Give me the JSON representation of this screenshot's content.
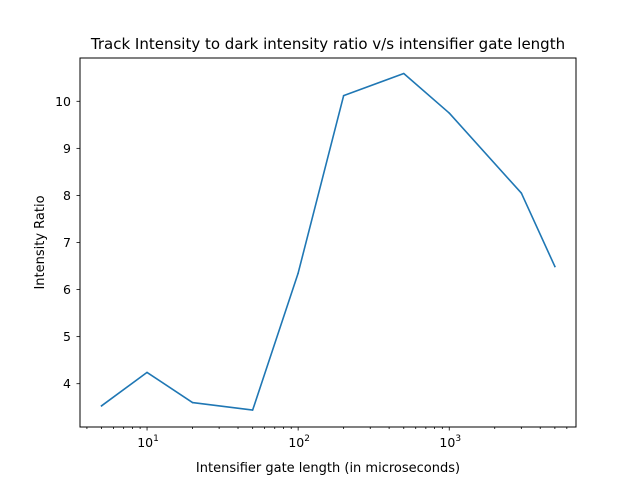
{
  "chart_data": {
    "type": "line",
    "title": "Track Intensity to dark intensity ratio v/s intensifier gate length",
    "xlabel": "Intensifier gate length (in microseconds)",
    "ylabel": "Intensity Ratio",
    "xscale": "log",
    "xlim": [
      3.6,
      6900
    ],
    "ylim": [
      3.08,
      10.92
    ],
    "grid": false,
    "x_tick_labels": [
      {
        "value": 10,
        "base": "10",
        "exponent": "1"
      },
      {
        "value": 100,
        "base": "10",
        "exponent": "2"
      },
      {
        "value": 1000,
        "base": "10",
        "exponent": "3"
      }
    ],
    "y_ticks": [
      4,
      5,
      6,
      7,
      8,
      9,
      10
    ],
    "y_tick_labels": [
      "4",
      "5",
      "6",
      "7",
      "8",
      "9",
      "10"
    ],
    "series": [
      {
        "color": "#1f77b4",
        "x": [
          5,
          10,
          20,
          50,
          100,
          200,
          500,
          1000,
          3000,
          5000
        ],
        "y": [
          3.53,
          4.24,
          3.6,
          3.44,
          6.35,
          10.12,
          10.59,
          9.75,
          8.05,
          6.49
        ]
      }
    ]
  }
}
